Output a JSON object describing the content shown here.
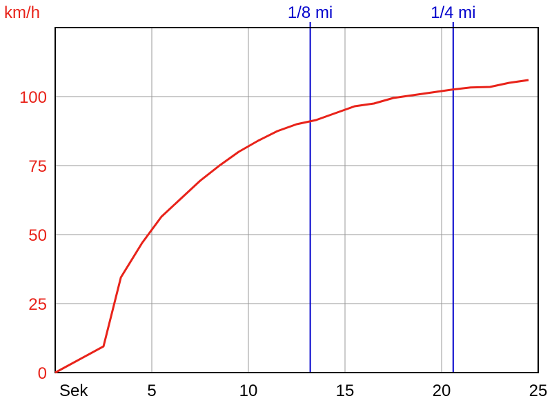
{
  "chart_data": {
    "type": "line",
    "title": "",
    "xlabel": "Sek",
    "ylabel": "km/h",
    "xlim": [
      0,
      25
    ],
    "ylim": [
      0,
      125
    ],
    "x_ticks": [
      5,
      10,
      15,
      20,
      25
    ],
    "x_tick_labels": [
      "5",
      "10",
      "15",
      "20",
      "25"
    ],
    "y_ticks": [
      0,
      25,
      50,
      75,
      100
    ],
    "y_tick_labels": [
      "0",
      "25",
      "50",
      "75",
      "100"
    ],
    "grid": true,
    "legend": "none",
    "series": [
      {
        "color": "#e8231a",
        "x": [
          0,
          2.5,
          3.4,
          4.5,
          5.5,
          6.5,
          7.5,
          8.5,
          9.5,
          10.5,
          11.5,
          12.5,
          13.5,
          14.5,
          15.5,
          16.5,
          17.5,
          18.5,
          19.5,
          20.5,
          21.5,
          22.5,
          23.5,
          24.5
        ],
        "y": [
          0,
          9.5,
          34.5,
          47,
          56.5,
          63,
          69.5,
          75,
          80,
          84,
          87.5,
          90,
          91.5,
          94,
          96.5,
          97.5,
          99.5,
          100.5,
          101.5,
          102.5,
          103.3,
          103.5,
          105,
          106
        ]
      }
    ],
    "reference_lines": [
      {
        "label": "1/8 mi",
        "x": 13.2,
        "color": "#0000cc"
      },
      {
        "label": "1/4 mi",
        "x": 20.6,
        "color": "#0000cc"
      }
    ],
    "axis_label_color": "#e8231a",
    "x_tick_color": "#000000",
    "grid_color": "#999999"
  }
}
